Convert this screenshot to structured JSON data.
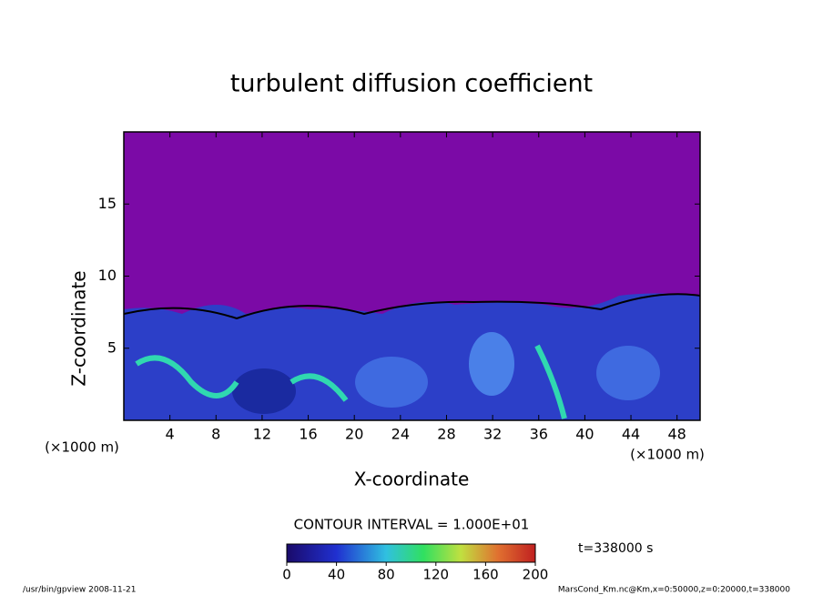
{
  "chart_data": {
    "type": "contour",
    "title": "turbulent diffusion coefficient",
    "xlabel": "X-coordinate",
    "ylabel": "Z-coordinate",
    "x_unit": "(×1000 m)",
    "xlim": [
      0,
      50
    ],
    "ylim": [
      0,
      20
    ],
    "xticks": [
      4,
      8,
      12,
      16,
      20,
      24,
      28,
      32,
      36,
      40,
      44,
      48
    ],
    "yticks": [
      5,
      10,
      15
    ],
    "contour_interval": "CONTOUR INTERVAL = 1.000E+01",
    "colorbar": {
      "lim": [
        0,
        200
      ],
      "ticks": [
        0,
        40,
        80,
        120,
        160,
        200
      ]
    },
    "time_label": "t=338000 s",
    "footer_left": "/usr/bin/gpview   2008-11-21",
    "footer_right": "MarsCond_Km.nc@Km,x=0:50000,z=0:20000,t=338000"
  }
}
